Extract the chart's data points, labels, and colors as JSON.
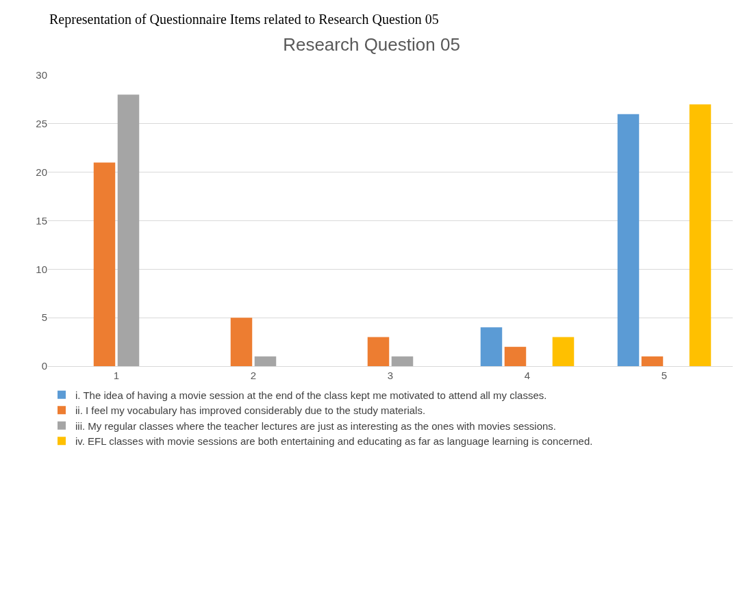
{
  "chart_data": {
    "type": "bar",
    "title": "Research Question 05",
    "annotations": [
      "Representation of Questionnaire Items related to Research Question 05"
    ],
    "categories": [
      "1",
      "2",
      "3",
      "4",
      "5"
    ],
    "series": [
      {
        "name": "i. The idea of having a movie session at the end of the class kept me motivated to attend all my classes.",
        "color": "#5b9bd5",
        "values": [
          0,
          0,
          0,
          4,
          26
        ]
      },
      {
        "name": "ii. I feel my vocabulary has improved considerably due to the study materials.",
        "color": "#ed7d31",
        "values": [
          21,
          5,
          3,
          2,
          1
        ]
      },
      {
        "name": "iii. My regular classes where the teacher lectures are just as interesting as the ones with movies sessions.",
        "color": "#a5a5a5",
        "values": [
          28,
          1,
          1,
          0,
          0
        ]
      },
      {
        "name": "iv. EFL classes with movie sessions are both entertaining and educating as far as language learning is concerned.",
        "color": "#ffc000",
        "values": [
          0,
          0,
          0,
          3,
          27
        ]
      }
    ],
    "ylim": [
      0,
      30
    ],
    "yticks": [
      0,
      5,
      10,
      15,
      20,
      25,
      30
    ],
    "grid": "y",
    "legend": "bottom"
  }
}
